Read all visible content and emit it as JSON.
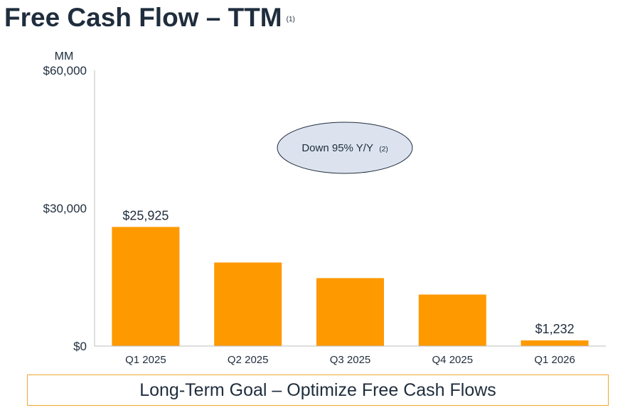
{
  "title": "Free Cash Flow – TTM",
  "title_footnote": "(1)",
  "goal": "Long-Term Goal – Optimize Free Cash Flows",
  "colors": {
    "bar": "#FF9900",
    "callout_fill": "#DCE3EF",
    "callout_stroke": "#1F2D3D",
    "goal_border": "#F0A830",
    "text": "#1F2D3D"
  },
  "chart_data": {
    "type": "bar",
    "ylabel": "MM",
    "ylim": [
      0,
      60000
    ],
    "yticks": [
      {
        "value": 0,
        "label": "$0"
      },
      {
        "value": 30000,
        "label": "$30,000"
      },
      {
        "value": 60000,
        "label": "$60,000"
      }
    ],
    "categories": [
      "Q1 2025",
      "Q2 2025",
      "Q3 2025",
      "Q4 2025",
      "Q1 2026"
    ],
    "values": [
      25925,
      18184,
      14788,
      11215,
      1232
    ],
    "data_labels": [
      "$25,925",
      "",
      "",
      "",
      "$1,232"
    ],
    "grid": false,
    "annotation": {
      "text": "Down 95% Y/Y",
      "footnote": "(2)"
    }
  }
}
